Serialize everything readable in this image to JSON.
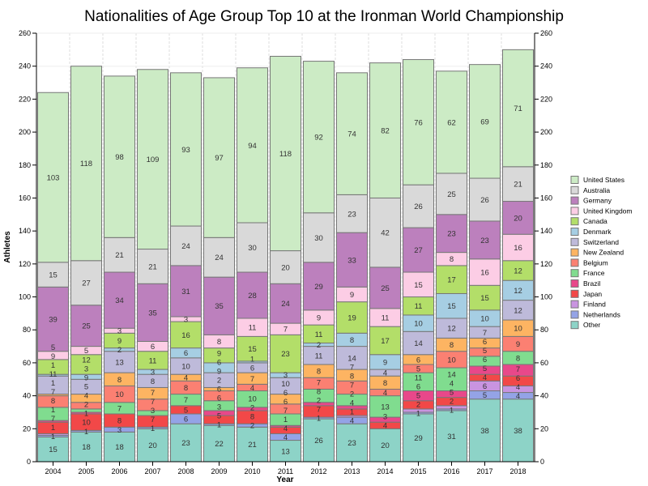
{
  "chart_data": {
    "type": "bar",
    "stacked": true,
    "title": "Nationalities of Age Group Top 10 at the Ironman World Championship",
    "xlabel": "Year",
    "ylabel": "Athletes",
    "ylim": [
      0,
      260
    ],
    "yticks": [
      0,
      20,
      40,
      60,
      80,
      100,
      120,
      140,
      160,
      180,
      200,
      220,
      240,
      260
    ],
    "grid": true,
    "legend_placement": "right",
    "categories": [
      "2004",
      "2005",
      "2006",
      "2007",
      "2008",
      "2009",
      "2010",
      "2011",
      "2012",
      "2013",
      "2014",
      "2015",
      "2016",
      "2017",
      "2018"
    ],
    "series": [
      {
        "name": "Other",
        "color": "#8dd3c7",
        "values": [
          15,
          18,
          18,
          20,
          23,
          22,
          21,
          13,
          26,
          23,
          20,
          29,
          31,
          38,
          38
        ]
      },
      {
        "name": "Netherlands",
        "color": "#94a3e6",
        "values": [
          1,
          1,
          3,
          1,
          6,
          1,
          2,
          4,
          1,
          4,
          0,
          1,
          1,
          5,
          4
        ]
      },
      {
        "name": "Finland",
        "color": "#c994e0",
        "values": [
          1,
          0,
          0,
          0,
          0,
          0,
          0,
          0,
          0,
          1,
          0,
          2,
          2,
          6,
          4
        ]
      },
      {
        "name": "Japan",
        "color": "#f24848",
        "values": [
          7,
          10,
          8,
          7,
          5,
          5,
          8,
          4,
          7,
          4,
          4,
          5,
          5,
          4,
          6
        ]
      },
      {
        "name": "Brazil",
        "color": "#e8488a",
        "values": [
          1,
          1,
          0,
          0,
          0,
          3,
          2,
          1,
          2,
          2,
          3,
          6,
          4,
          5,
          7
        ]
      },
      {
        "name": "France",
        "color": "#80dc8f",
        "values": [
          8,
          2,
          7,
          3,
          7,
          6,
          10,
          7,
          8,
          7,
          13,
          11,
          14,
          6,
          8
        ]
      },
      {
        "name": "Belgium",
        "color": "#fb8072",
        "values": [
          7,
          4,
          10,
          7,
          8,
          6,
          4,
          6,
          7,
          8,
          4,
          5,
          10,
          5,
          9
        ]
      },
      {
        "name": "New Zealand",
        "color": "#fdb462",
        "values": [
          1,
          5,
          8,
          7,
          4,
          2,
          7,
          6,
          8,
          7,
          8,
          6,
          8,
          6,
          10
        ]
      },
      {
        "name": "Switzerland",
        "color": "#bebada",
        "values": [
          11,
          9,
          13,
          8,
          10,
          9,
          6,
          10,
          11,
          14,
          4,
          14,
          12,
          7,
          12
        ]
      },
      {
        "name": "Denmark",
        "color": "#a6cee3",
        "values": [
          1,
          3,
          2,
          3,
          6,
          6,
          1,
          3,
          2,
          8,
          9,
          10,
          15,
          10,
          12
        ]
      },
      {
        "name": "Canada",
        "color": "#b3de69",
        "values": [
          9,
          12,
          9,
          11,
          16,
          9,
          15,
          23,
          11,
          19,
          17,
          11,
          17,
          15,
          12
        ]
      },
      {
        "name": "United Kingdom",
        "color": "#fccde5",
        "values": [
          5,
          5,
          3,
          6,
          3,
          8,
          11,
          7,
          9,
          9,
          11,
          15,
          8,
          16,
          16
        ]
      },
      {
        "name": "Germany",
        "color": "#bc80bd",
        "values": [
          39,
          25,
          34,
          35,
          31,
          35,
          28,
          24,
          29,
          33,
          25,
          27,
          23,
          23,
          20
        ]
      },
      {
        "name": "Australia",
        "color": "#d9d9d9",
        "values": [
          15,
          27,
          21,
          21,
          24,
          24,
          30,
          20,
          30,
          23,
          42,
          26,
          25,
          26,
          21
        ]
      },
      {
        "name": "United States",
        "color": "#ccebc5",
        "values": [
          103,
          118,
          98,
          109,
          93,
          97,
          94,
          118,
          92,
          74,
          82,
          76,
          62,
          69,
          71
        ]
      }
    ]
  }
}
